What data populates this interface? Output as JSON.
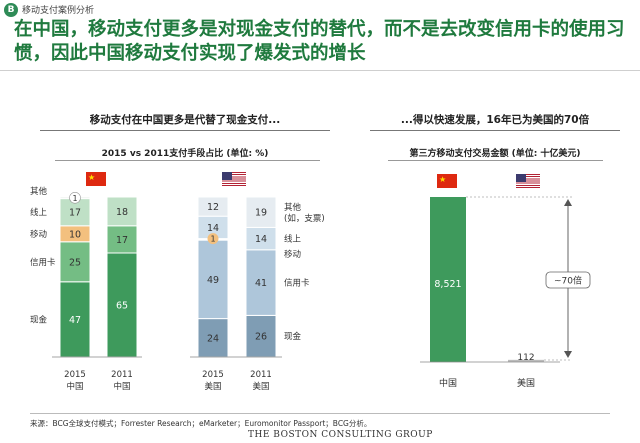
{
  "header": {
    "badge": "B",
    "section_label": "移动支付案例分析",
    "headline": "在中国，移动支付更多是对现金支付的替代，而不是去改变信用卡的使用习惯，因此中国移动支付实现了爆发式的增长"
  },
  "left_panel": {
    "title": "移动支付在中国更多是代替了现金支付...",
    "subtitle": "2015 vs 2011支付手段占比 (单位: %)"
  },
  "right_panel": {
    "title": "...得以快速发展，16年已为美国的70倍",
    "subtitle": "第三方移动支付交易金额 (单位: 十亿美元)",
    "multiple_label": "~70倍"
  },
  "flags": {
    "china": "china-flag-icon",
    "usa": "us-flag-icon"
  },
  "colors": {
    "cash": "#3e9a5c",
    "credit": "#74bd84",
    "mobile": "#f3c07e",
    "online": "#bfe0c6",
    "other": "#e8eee9",
    "us_cash": "#7f9db4",
    "us_credit": "#aec6da",
    "us_online": "#cfdfeb",
    "us_other": "#e6ecf1",
    "china_bar": "#3e9a5c",
    "headline_green": "#1f7a3e"
  },
  "chart_data": [
    {
      "type": "bar",
      "stacked": true,
      "title": "2015 vs 2011支付手段占比 (单位: %)",
      "categories": [
        "2015\n中国",
        "2011\n中国",
        "2015\n美国",
        "2011\n美国"
      ],
      "category_labels": [
        {
          "year": "2015",
          "country": "中国"
        },
        {
          "year": "2011",
          "country": "中国"
        },
        {
          "year": "2015",
          "country": "美国"
        },
        {
          "year": "2011",
          "country": "美国"
        }
      ],
      "series": [
        {
          "name": "现金",
          "values": [
            47,
            65,
            24,
            26
          ]
        },
        {
          "name": "信用卡",
          "values": [
            25,
            17,
            49,
            41
          ]
        },
        {
          "name": "移动",
          "values": [
            10,
            0,
            1,
            0
          ]
        },
        {
          "name": "线上",
          "values": [
            17,
            18,
            14,
            14
          ]
        },
        {
          "name": "其他",
          "values": [
            1,
            0,
            12,
            19
          ]
        }
      ],
      "left_legend": [
        "其他",
        "线上",
        "移动",
        "信用卡",
        "现金"
      ],
      "right_legend": [
        "其他\n(如，支票)",
        "线上",
        "移动",
        "信用卡",
        "现金"
      ],
      "ylim": [
        0,
        100
      ]
    },
    {
      "type": "bar",
      "title": "第三方移动支付交易金额 (单位: 十亿美元)",
      "categories": [
        "中国",
        "美国"
      ],
      "values": [
        8521,
        112
      ],
      "value_labels": [
        "8,521",
        "112"
      ],
      "annotation": "~70倍"
    }
  ],
  "footer": {
    "source": "来源：BCG全球支付模式；Forrester Research；eMarketer；Euromonitor Passport；BCG分析。",
    "brand": "THE BOSTON CONSULTING GROUP"
  }
}
